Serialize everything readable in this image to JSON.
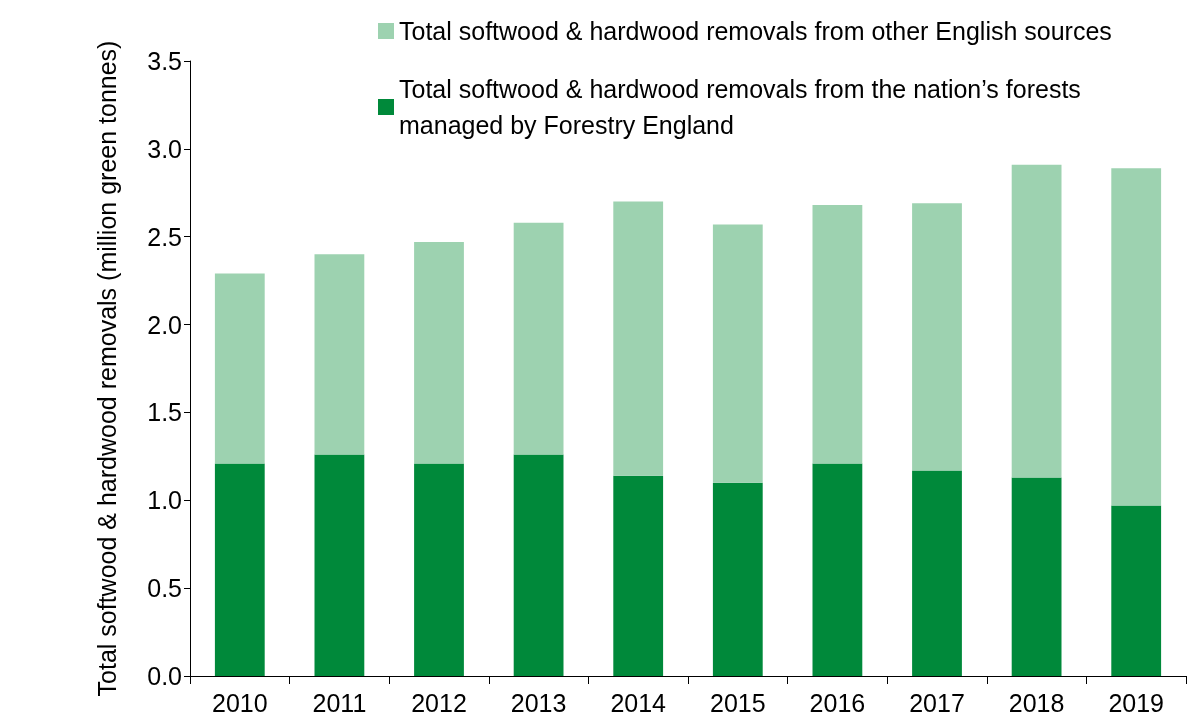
{
  "chart_data": {
    "type": "bar",
    "stacked": true,
    "ylabel": "Total softwood & hardwood removals (million green tonnes)",
    "categories": [
      "2010",
      "2011",
      "2012",
      "2013",
      "2014",
      "2015",
      "2016",
      "2017",
      "2018",
      "2019"
    ],
    "series": [
      {
        "name": "Total softwood & hardwood removals from the nation’s forests managed by Forestry England",
        "color": "#00893a",
        "values": [
          1.21,
          1.26,
          1.21,
          1.26,
          1.14,
          1.1,
          1.21,
          1.17,
          1.13,
          0.97
        ]
      },
      {
        "name": "Total softwood & hardwood removals from other English sources",
        "color": "#9dd2b0",
        "values": [
          1.08,
          1.14,
          1.26,
          1.32,
          1.56,
          1.47,
          1.47,
          1.52,
          1.78,
          1.92
        ]
      }
    ],
    "ylim": [
      0,
      3.5
    ],
    "yticks": [
      {
        "value": 0,
        "label": "0.0"
      },
      0.5,
      {
        "value": 1,
        "label": "1.0"
      },
      1.5,
      {
        "value": 2,
        "label": "2.0"
      },
      2.5,
      {
        "value": 3,
        "label": "3.0"
      },
      3.5
    ],
    "grid": false,
    "legend": "top right"
  }
}
